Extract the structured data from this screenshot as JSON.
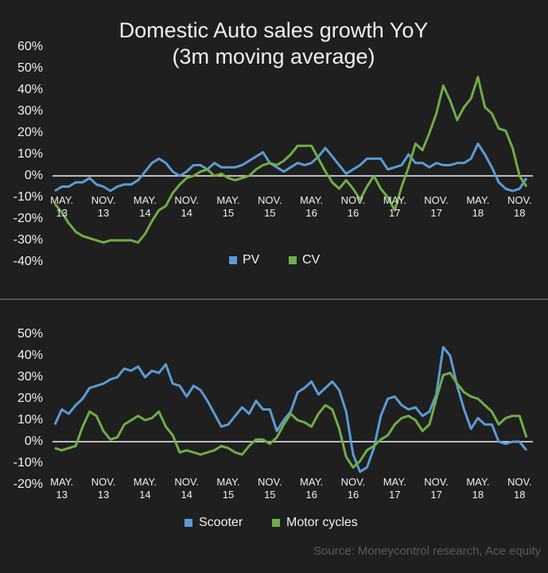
{
  "chart_data": [
    {
      "type": "line",
      "title": "Domestic Auto sales growth YoY",
      "subtitle": "(3m moving average)",
      "categories": [
        null,
        "MAY.\n13",
        null,
        null,
        null,
        null,
        null,
        "NOV.\n13",
        null,
        null,
        null,
        null,
        null,
        "MAY.\n14",
        null,
        null,
        null,
        null,
        null,
        "NOV.\n14",
        null,
        null,
        null,
        null,
        null,
        "MAY.\n15",
        null,
        null,
        null,
        null,
        null,
        "NOV.\n15",
        null,
        null,
        null,
        null,
        null,
        "MAY.\n16",
        null,
        null,
        null,
        null,
        null,
        "NOV.\n16",
        null,
        null,
        null,
        null,
        null,
        "MAY.\n17",
        null,
        null,
        null,
        null,
        null,
        "NOV.\n17",
        null,
        null,
        null,
        null,
        null,
        "MAY.\n18",
        null,
        null,
        null,
        null,
        null,
        "NOV.\n18",
        null
      ],
      "series": [
        {
          "name": "PV",
          "color": "#5b9bd5",
          "values": [
            -7,
            -5,
            -5,
            -3,
            -3,
            -1,
            -4,
            -5,
            -7,
            -5,
            -4,
            -4,
            -2,
            2,
            6,
            8,
            6,
            2,
            0,
            2,
            5,
            5,
            3,
            6,
            4,
            4,
            4,
            5,
            7,
            9,
            11,
            6,
            4,
            2,
            4,
            6,
            5,
            6,
            9,
            13,
            9,
            5,
            1,
            3,
            5,
            8,
            8,
            8,
            3,
            4,
            5,
            10,
            6,
            6,
            4,
            6,
            5,
            5,
            6,
            6,
            8,
            15,
            10,
            4,
            -3,
            -6,
            -7,
            -6,
            -1
          ]
        },
        {
          "name": "CV",
          "color": "#70ad47",
          "values": [
            -13,
            -17,
            -22,
            -26,
            -28,
            -29,
            -30,
            -31,
            -30,
            -30,
            -30,
            -30,
            -31,
            -27,
            -21,
            -16,
            -14,
            -8,
            -4,
            -1,
            0,
            2,
            3,
            0,
            1,
            -1,
            -2,
            -1,
            0,
            3,
            5,
            6,
            5,
            7,
            10,
            14,
            14,
            14,
            8,
            2,
            -3,
            -6,
            -2,
            -6,
            -11,
            -5,
            0,
            -6,
            -10,
            -16,
            -5,
            4,
            15,
            12,
            20,
            29,
            42,
            35,
            26,
            32,
            36,
            46,
            32,
            29,
            22,
            21,
            13,
            0,
            -5
          ]
        }
      ],
      "ylim": [
        -40,
        60
      ],
      "yticks": [
        {
          "value": -40,
          "label": "-40%"
        },
        {
          "value": -30,
          "label": "-30%"
        },
        {
          "value": -20,
          "label": "-20%"
        },
        {
          "value": -10,
          "label": "-10%"
        },
        {
          "value": 0,
          "label": "0%"
        },
        {
          "value": 10,
          "label": "10%"
        },
        {
          "value": 20,
          "label": "20%"
        },
        {
          "value": 30,
          "label": "30%"
        },
        {
          "value": 40,
          "label": "40%"
        },
        {
          "value": 50,
          "label": "50%"
        },
        {
          "value": 60,
          "label": "60%"
        }
      ],
      "grid": false,
      "legend": "bottom"
    },
    {
      "type": "line",
      "categories": [
        null,
        "MAY.\n13",
        null,
        null,
        null,
        null,
        null,
        "NOV.\n13",
        null,
        null,
        null,
        null,
        null,
        "MAY.\n14",
        null,
        null,
        null,
        null,
        null,
        "NOV.\n14",
        null,
        null,
        null,
        null,
        null,
        "MAY.\n15",
        null,
        null,
        null,
        null,
        null,
        "NOV.\n15",
        null,
        null,
        null,
        null,
        null,
        "MAY.\n16",
        null,
        null,
        null,
        null,
        null,
        "NOV.\n16",
        null,
        null,
        null,
        null,
        null,
        "MAY.\n17",
        null,
        null,
        null,
        null,
        null,
        "NOV.\n17",
        null,
        null,
        null,
        null,
        null,
        "MAY.\n18",
        null,
        null,
        null,
        null,
        null,
        "NOV.\n18",
        null
      ],
      "series": [
        {
          "name": "Scooter",
          "color": "#5b9bd5",
          "values": [
            8,
            15,
            13,
            17,
            20,
            25,
            26,
            27,
            29,
            30,
            34,
            33,
            35,
            30,
            33,
            32,
            36,
            27,
            26,
            21,
            26,
            24,
            19,
            13,
            7,
            8,
            12,
            16,
            13,
            19,
            15,
            15,
            5,
            10,
            14,
            23,
            25,
            28,
            22,
            25,
            28,
            24,
            14,
            -6,
            -14,
            -12,
            -3,
            12,
            20,
            21,
            17,
            15,
            16,
            12,
            14,
            22,
            44,
            40,
            26,
            15,
            6,
            11,
            8,
            8,
            0,
            -1,
            0,
            0,
            -4
          ]
        },
        {
          "name": "Motor cycles",
          "color": "#70ad47",
          "values": [
            -3,
            -4,
            -3,
            -2,
            7,
            14,
            12,
            5,
            1,
            2,
            8,
            10,
            12,
            10,
            11,
            14,
            7,
            3,
            -5,
            -4,
            -5,
            -6,
            -5,
            -4,
            -2,
            -3,
            -5,
            -6,
            -2,
            1,
            1,
            -1,
            2,
            8,
            13,
            10,
            9,
            7,
            13,
            17,
            15,
            6,
            -7,
            -12,
            -9,
            -4,
            -2,
            1,
            3,
            8,
            11,
            12,
            10,
            5,
            8,
            20,
            31,
            32,
            27,
            23,
            21,
            20,
            17,
            14,
            8,
            11,
            12,
            12,
            2
          ]
        }
      ],
      "ylim": [
        -20,
        50
      ],
      "yticks": [
        {
          "value": -20,
          "label": "-20%"
        },
        {
          "value": -10,
          "label": "-10%"
        },
        {
          "value": 0,
          "label": "0%"
        },
        {
          "value": 10,
          "label": "10%"
        },
        {
          "value": 20,
          "label": "20%"
        },
        {
          "value": 30,
          "label": "30%"
        },
        {
          "value": 40,
          "label": "40%"
        },
        {
          "value": 50,
          "label": "50%"
        }
      ],
      "grid": false,
      "legend": "bottom",
      "source": "Source: Moneycontrol research, Ace equity"
    }
  ]
}
